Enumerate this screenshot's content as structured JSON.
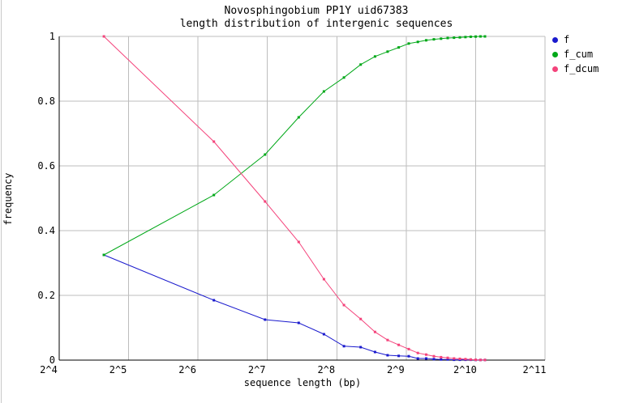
{
  "figure": {
    "background": "#ffffff",
    "grid_color": "#bdbdbd",
    "axis_color": "#000000"
  },
  "chart_data": {
    "type": "line",
    "title": "Novosphingobium PP1Y uid67383",
    "subtitle": "length distribution of intergenic sequences",
    "xlabel": "sequence length (bp)",
    "ylabel": "frequency",
    "x_scale": "log2",
    "xlim_log2": [
      4,
      11
    ],
    "ylim": [
      0,
      1
    ],
    "grid": true,
    "legend_position": "outside-top-right",
    "x_ticks": [
      "2^4",
      "2^5",
      "2^6",
      "2^7",
      "2^8",
      "2^9",
      "2^10",
      "2^11"
    ],
    "x_tick_log2": [
      4,
      5,
      6,
      7,
      8,
      9,
      10,
      11
    ],
    "y_ticks": [
      "0",
      "0.2",
      "0.4",
      "0.6",
      "0.8",
      "1"
    ],
    "y_tick_values": [
      0,
      0.2,
      0.4,
      0.6,
      0.8,
      1
    ],
    "x": [
      25,
      75,
      125,
      175,
      225,
      275,
      325,
      375,
      425,
      475,
      525,
      575,
      625,
      675,
      725,
      775,
      825,
      875,
      925,
      975,
      1025,
      1075,
      1125
    ],
    "series": [
      {
        "name": "f",
        "color": "#1a1acd",
        "values": [
          0.325,
          0.185,
          0.125,
          0.115,
          0.08,
          0.043,
          0.04,
          0.025,
          0.015,
          0.013,
          0.012,
          0.005,
          0.005,
          0.003,
          0.002,
          0.002,
          0.001,
          0.001,
          0.001,
          0.001,
          0.0005,
          0.0005,
          0.0005
        ]
      },
      {
        "name": "f_cum",
        "color": "#00a818",
        "values": [
          0.325,
          0.51,
          0.635,
          0.75,
          0.83,
          0.873,
          0.913,
          0.938,
          0.953,
          0.966,
          0.978,
          0.983,
          0.988,
          0.991,
          0.993,
          0.995,
          0.996,
          0.997,
          0.998,
          0.999,
          0.9995,
          1.0,
          1.0
        ]
      },
      {
        "name": "f_dcum",
        "color": "#f4437b",
        "values": [
          1.0,
          0.675,
          0.49,
          0.365,
          0.25,
          0.17,
          0.127,
          0.087,
          0.062,
          0.047,
          0.034,
          0.022,
          0.017,
          0.012,
          0.009,
          0.007,
          0.005,
          0.004,
          0.003,
          0.002,
          0.001,
          0.0005,
          0.0005
        ]
      }
    ]
  }
}
